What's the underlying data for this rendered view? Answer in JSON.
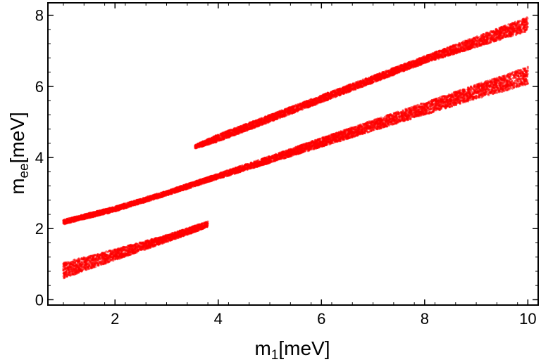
{
  "chart_data": {
    "type": "scatter",
    "title": "",
    "xlabel_main": "m",
    "xlabel_sub": "1",
    "xlabel_unit": "[meV]",
    "ylabel_main": "m",
    "ylabel_sub": "ee",
    "ylabel_unit": "[meV]",
    "xlim": [
      0.7,
      10.2
    ],
    "ylim": [
      -0.15,
      8.35
    ],
    "xticks": [
      2,
      4,
      6,
      8,
      10
    ],
    "yticks": [
      0,
      2,
      4,
      6,
      8
    ],
    "grid": false,
    "point_color": "#ff0000",
    "series": [
      {
        "x": [
          1.0,
          1.5,
          2.0,
          2.5,
          3.0,
          3.5,
          3.8
        ],
        "y_low": [
          0.6,
          0.86,
          1.11,
          1.37,
          1.62,
          1.88,
          2.05
        ],
        "y_high": [
          1.05,
          1.23,
          1.42,
          1.62,
          1.82,
          2.06,
          2.2
        ]
      },
      {
        "x": [
          1.0,
          2.0,
          3.0,
          4.0,
          5.0,
          6.0,
          7.0,
          8.0,
          9.0,
          10.0
        ],
        "y_low": [
          2.12,
          2.48,
          2.93,
          3.4,
          3.85,
          4.3,
          4.75,
          5.2,
          5.65,
          6.05
        ],
        "y_high": [
          2.25,
          2.62,
          3.06,
          3.55,
          4.04,
          4.55,
          5.05,
          5.55,
          6.05,
          6.55
        ]
      },
      {
        "x": [
          3.55,
          4.0,
          5.0,
          6.0,
          7.0,
          8.0,
          9.0,
          10.0
        ],
        "y_low": [
          4.25,
          4.45,
          5.0,
          5.55,
          6.1,
          6.65,
          7.1,
          7.55
        ],
        "y_high": [
          4.35,
          4.65,
          5.2,
          5.75,
          6.3,
          6.85,
          7.4,
          7.95
        ]
      }
    ]
  }
}
